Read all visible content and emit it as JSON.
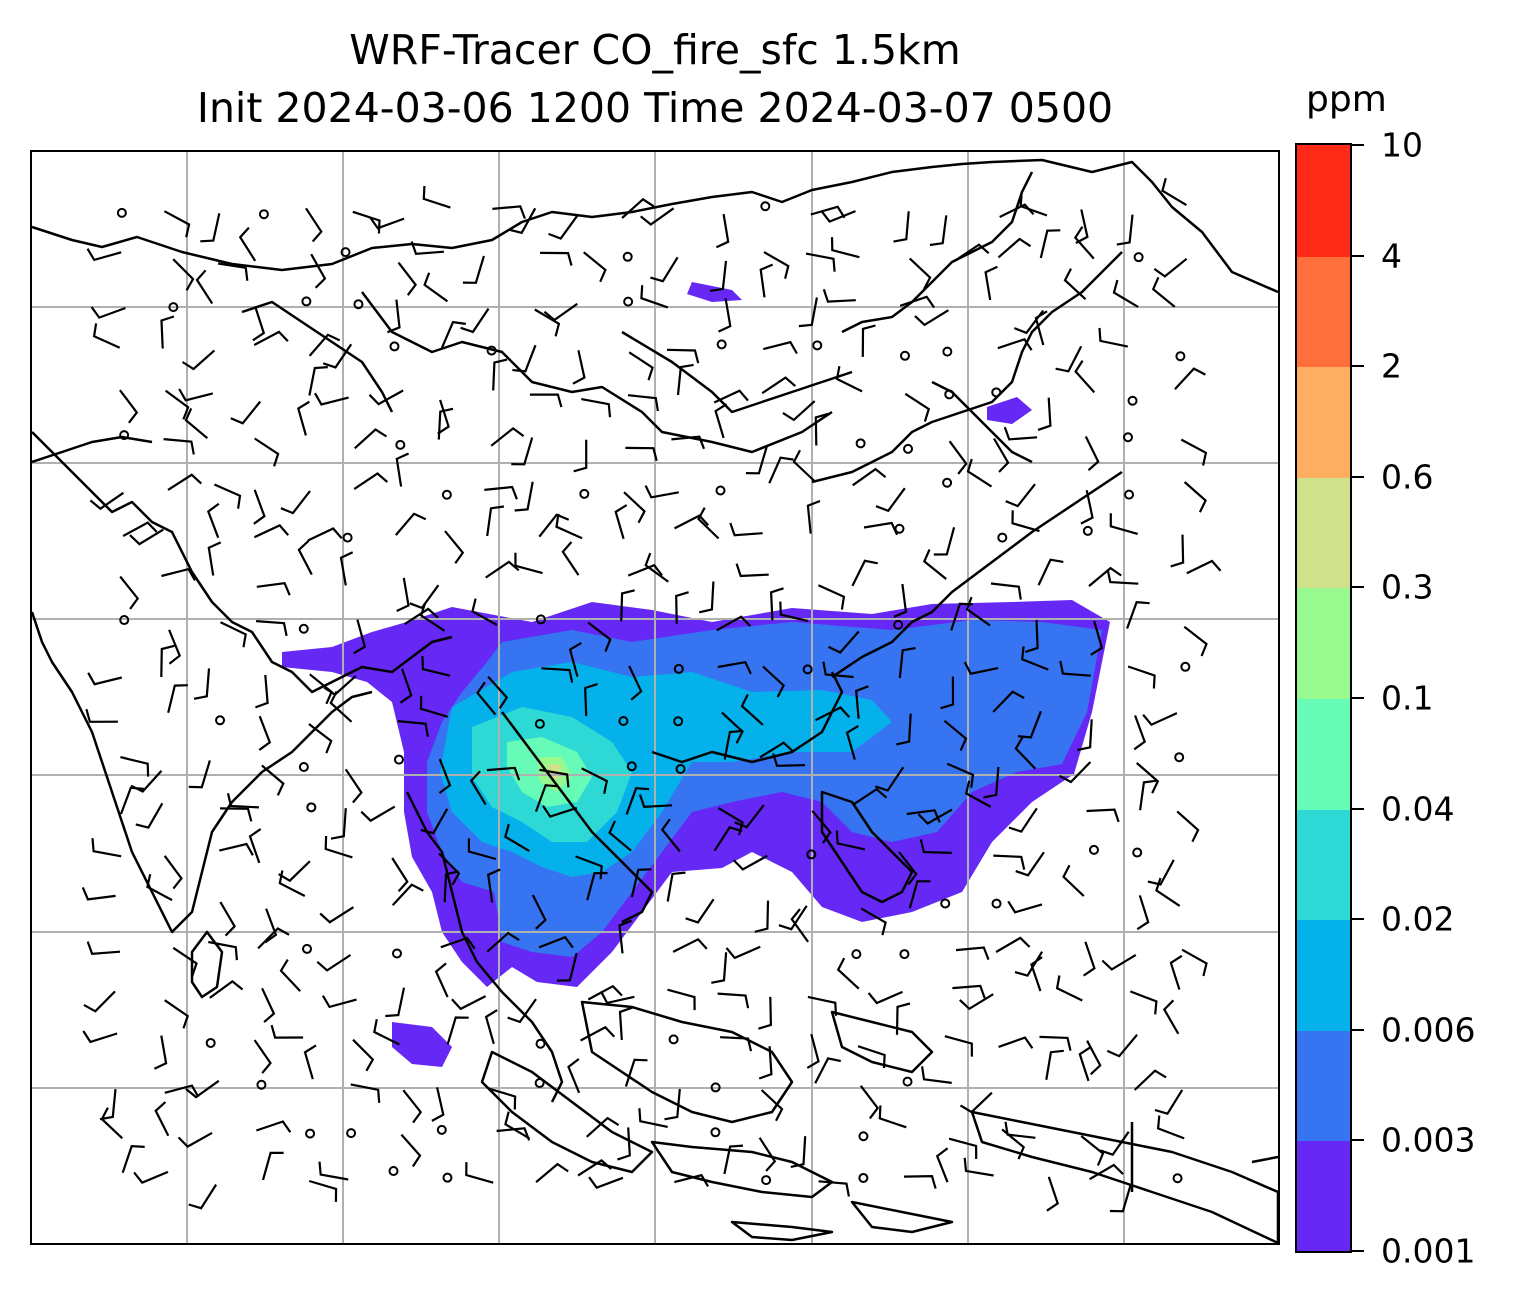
{
  "chart_data": {
    "type": "heatmap",
    "title_line1": "WRF-Tracer CO_fire_sfc 1.5km",
    "title_line2": "Init 2024-03-06 1200 Time 2024-03-07 0500",
    "colorbar": {
      "unit": "ppm",
      "levels": [
        "0.001",
        "0.003",
        "0.006",
        "0.02",
        "0.04",
        "0.1",
        "0.3",
        "0.6",
        "2",
        "4",
        "10"
      ],
      "colors": [
        "#6528f5",
        "#3674f2",
        "#05b1ea",
        "#2ed9d5",
        "#66fbb6",
        "#98f98f",
        "#d1e08a",
        "#fdae61",
        "#ff6f3b",
        "#ff2a17"
      ]
    },
    "field": "CO_fire_sfc",
    "grid": true,
    "overlays": [
      "coastlines",
      "country borders",
      "wind barbs"
    ]
  }
}
